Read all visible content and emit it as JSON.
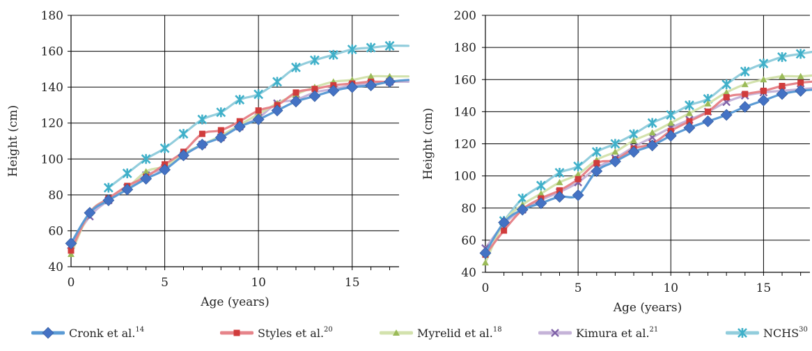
{
  "chart_data": [
    {
      "type": "line",
      "xlabel": "Age (years)",
      "ylabel": "Height (cm)",
      "xlim": [
        0,
        17.5
      ],
      "ylim": [
        40,
        180
      ],
      "xticks": [
        0,
        5,
        10,
        15
      ],
      "yticks": [
        40,
        60,
        80,
        100,
        120,
        140,
        160,
        180
      ],
      "grid": "vertical and horizontal",
      "series": [
        {
          "name": "Cronk et al.",
          "x": [
            0,
            1,
            2,
            3,
            4,
            5,
            6,
            7,
            8,
            9,
            10,
            11,
            12,
            13,
            14,
            15,
            16,
            17,
            18
          ],
          "values": [
            53,
            70,
            77,
            83,
            89,
            94,
            102,
            108,
            112,
            118,
            122,
            127,
            132,
            135,
            138,
            140,
            141,
            143,
            144
          ]
        },
        {
          "name": "Styles et al.",
          "x": [
            0,
            1,
            2,
            3,
            4,
            5,
            6,
            7,
            8,
            9,
            10,
            11,
            12,
            13,
            14,
            15,
            16,
            17,
            18
          ],
          "values": [
            49,
            70,
            78,
            85,
            90,
            97,
            104,
            114,
            116,
            121,
            127,
            130,
            137,
            139,
            141,
            142,
            143,
            143,
            144
          ]
        },
        {
          "name": "Myrelid et al.",
          "x": [
            0,
            1,
            2,
            3,
            4,
            5,
            6,
            7,
            8,
            9,
            10,
            11,
            12,
            13,
            14,
            15,
            16,
            17,
            18
          ],
          "values": [
            47,
            70,
            78,
            84,
            93,
            96,
            103,
            108,
            113,
            119,
            125,
            131,
            136,
            140,
            143,
            144,
            146,
            146,
            146
          ]
        },
        {
          "name": "Kimura et al.",
          "x": [
            0,
            1,
            2,
            3,
            4,
            5,
            6,
            7,
            8,
            9,
            10,
            11,
            12,
            13,
            14,
            15,
            16,
            17,
            18
          ],
          "values": [
            52,
            68,
            77,
            84,
            91,
            95,
            102,
            108,
            112,
            118,
            123,
            131,
            133,
            137,
            139,
            141,
            142,
            143,
            143
          ]
        },
        {
          "name": "NCHS",
          "x": [
            2,
            3,
            4,
            5,
            6,
            7,
            8,
            9,
            10,
            11,
            12,
            13,
            14,
            15,
            16,
            17,
            18
          ],
          "values": [
            84,
            92,
            100,
            106,
            114,
            122,
            126,
            133,
            136,
            143,
            151,
            155,
            158,
            161,
            162,
            163,
            163
          ]
        }
      ]
    },
    {
      "type": "line",
      "xlabel": "Age (years)",
      "ylabel": "Height (cm)",
      "xlim": [
        0,
        17.5
      ],
      "ylim": [
        40,
        200
      ],
      "xticks": [
        0,
        5,
        10,
        15
      ],
      "yticks": [
        40,
        60,
        80,
        100,
        120,
        140,
        160,
        180,
        200
      ],
      "grid": "vertical and horizontal",
      "series": [
        {
          "name": "Cronk et al.",
          "x": [
            0,
            1,
            2,
            3,
            4,
            5,
            6,
            7,
            8,
            9,
            10,
            11,
            12,
            13,
            14,
            15,
            16,
            17,
            18
          ],
          "values": [
            52,
            71,
            79,
            83,
            87,
            88,
            103,
            109,
            115,
            119,
            125,
            130,
            134,
            138,
            143,
            147,
            151,
            153,
            154
          ]
        },
        {
          "name": "Styles et al.",
          "x": [
            0,
            1,
            2,
            3,
            4,
            5,
            6,
            7,
            8,
            9,
            10,
            11,
            12,
            13,
            14,
            15,
            16,
            17,
            18
          ],
          "values": [
            51,
            66,
            79,
            86,
            91,
            98,
            108,
            110,
            117,
            120,
            128,
            134,
            140,
            149,
            151,
            153,
            156,
            158,
            159
          ]
        },
        {
          "name": "Myrelid et al.",
          "x": [
            0,
            1,
            2,
            3,
            4,
            5,
            6,
            7,
            8,
            9,
            10,
            11,
            12,
            13,
            14,
            15,
            16,
            17,
            18
          ],
          "values": [
            46,
            71,
            82,
            89,
            96,
            101,
            110,
            115,
            122,
            127,
            133,
            139,
            145,
            152,
            157,
            160,
            162,
            162,
            163
          ]
        },
        {
          "name": "Kimura et al.",
          "x": [
            0,
            1,
            2,
            3,
            4,
            5,
            6,
            7,
            8,
            9,
            10,
            11,
            12,
            13,
            14,
            15,
            16,
            17,
            18
          ],
          "values": [
            55,
            70,
            79,
            85,
            90,
            96,
            105,
            111,
            118,
            124,
            130,
            135,
            140,
            146,
            150,
            152,
            153,
            154,
            155
          ]
        },
        {
          "name": "NCHS",
          "x": [
            1,
            2,
            3,
            4,
            5,
            6,
            7,
            8,
            9,
            10,
            11,
            12,
            13,
            14,
            15,
            16,
            17,
            18
          ],
          "values": [
            72,
            86,
            94,
            102,
            106,
            115,
            120,
            126,
            133,
            138,
            144,
            148,
            157,
            165,
            170,
            174,
            176,
            178
          ]
        }
      ]
    }
  ],
  "legend": [
    {
      "label": "Cronk et al.",
      "ref": "14",
      "color": "#5b9bd5",
      "marker": "diamond",
      "markerColor": "#4472c4"
    },
    {
      "label": "Styles et al.",
      "ref": "20",
      "color": "#e6848a",
      "marker": "square",
      "markerColor": "#d03c3c"
    },
    {
      "label": "Myrelid et al.",
      "ref": "18",
      "color": "#d3e2ad",
      "marker": "triangle",
      "markerColor": "#9bbb59"
    },
    {
      "label": "Kimura et al.",
      "ref": "21",
      "color": "#c5b3d8",
      "marker": "x",
      "markerColor": "#7f62a8"
    },
    {
      "label": "NCHS",
      "ref": "30",
      "color": "#92cddc",
      "marker": "asterisk",
      "markerColor": "#3fb0c9"
    }
  ]
}
